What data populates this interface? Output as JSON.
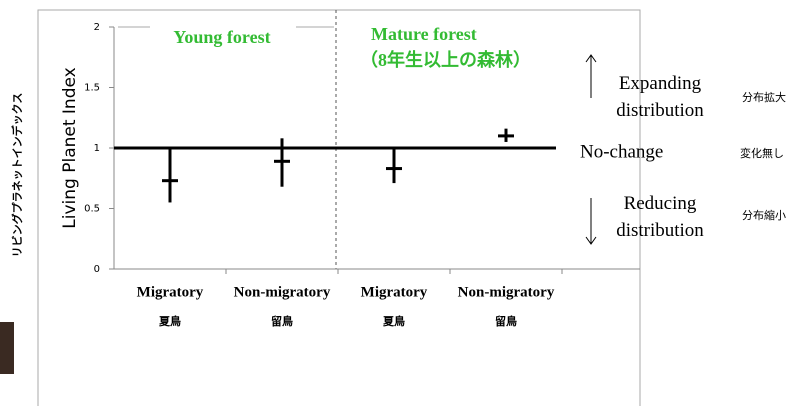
{
  "chart_data": {
    "type": "errorbar",
    "y_label": "Living Planet Index",
    "y_label_ja": "リビングプラネットインデックス",
    "categories": [
      "Migratory",
      "Non-migratory",
      "Migratory",
      "Non-migratory"
    ],
    "category_sublabels": [
      "夏鳥",
      "留鳥",
      "夏鳥",
      "留鳥"
    ],
    "groups": [
      {
        "label": "Young forest"
      },
      {
        "label": "Mature forest",
        "sublabel": "（8年生以上の森林）"
      }
    ],
    "series": [
      {
        "color": "#000000",
        "values": [
          0.73,
          0.89,
          0.83,
          1.1
        ],
        "lower": [
          0.55,
          0.68,
          0.71,
          1.05
        ],
        "upper": [
          1.0,
          1.08,
          1.0,
          1.16
        ]
      }
    ],
    "reference_line": 1,
    "ylim": [
      0,
      2
    ],
    "yticks": [
      0,
      0.5,
      1,
      1.5,
      2
    ],
    "annotations": {
      "expanding": "Expanding distribution",
      "expanding_ja": "分布拡大",
      "no_change": "No-change",
      "no_change_ja": "変化無し",
      "reducing": "Reducing distribution",
      "reducing_ja": "分布縮小"
    }
  }
}
